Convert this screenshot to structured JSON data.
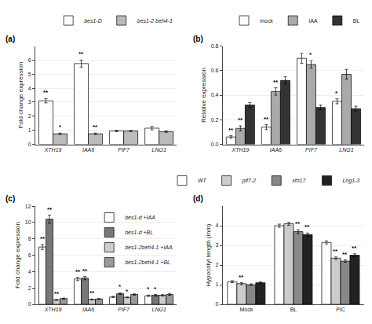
{
  "chart_data": [
    {
      "type": "bar",
      "title": "(a)",
      "categories": [
        "XTH19",
        "IAA6",
        "PIF7",
        "LNG1"
      ],
      "ylabel": "Fold change expression",
      "ylim": [
        0,
        7
      ],
      "yticks": [
        0,
        1,
        2,
        3,
        4,
        5,
        6
      ],
      "grid": true,
      "legend": "upper right",
      "series": [
        {
          "name": "bes1-D",
          "color": "#FFFFFF",
          "values": [
            3.1,
            5.75,
            0.95,
            1.15
          ],
          "errors": [
            0.15,
            0.25,
            0.05,
            0.12
          ],
          "annotations": [
            "**",
            "**",
            null,
            null
          ]
        },
        {
          "name": "bes1-2 beh4-1",
          "color": "#BBBBBB",
          "values": [
            0.75,
            0.75,
            0.95,
            0.9
          ],
          "errors": [
            0.05,
            0.05,
            0.04,
            0.05
          ],
          "annotations": [
            "*",
            "**",
            null,
            null
          ]
        }
      ]
    },
    {
      "type": "bar",
      "title": "(b)",
      "categories": [
        "XTH19",
        "IAA6",
        "PIF7",
        "LNG1"
      ],
      "ylabel": "Relative expression",
      "ylim": [
        0,
        0.8
      ],
      "yticks": [
        {
          "value": 0,
          "label": "0.0"
        },
        0.2,
        0.4,
        0.6,
        0.8
      ],
      "grid": true,
      "legend": "upper right",
      "series": [
        {
          "name": "mock",
          "color": "#FFFFFF",
          "values": [
            0.06,
            0.14,
            0.7,
            0.35
          ],
          "errors": [
            0.01,
            0.02,
            0.04,
            0.02
          ],
          "annotations": [
            "**",
            "**",
            null,
            "*"
          ]
        },
        {
          "name": "IAA",
          "color": "#AAAAAA",
          "values": [
            0.13,
            0.43,
            0.65,
            0.57
          ],
          "errors": [
            0.02,
            0.03,
            0.03,
            0.04
          ],
          "annotations": [
            "**",
            "**",
            "*",
            null
          ]
        },
        {
          "name": "BL",
          "color": "#333333",
          "values": [
            0.32,
            0.52,
            0.3,
            0.29
          ],
          "errors": [
            0.02,
            0.03,
            0.02,
            0.02
          ]
        }
      ]
    },
    {
      "type": "bar",
      "title": "(c)",
      "categories": [
        "XTH19",
        "IAA6",
        "PIF7",
        "LNG1"
      ],
      "ylabel": "Fold change expression",
      "ylim": [
        0,
        12
      ],
      "yticks": [
        0,
        2,
        4,
        6,
        8,
        10,
        12
      ],
      "grid": true,
      "legend": "upper right",
      "series": [
        {
          "name": "bes1-d +IAA",
          "color": "#FFFFFF",
          "values": [
            7.0,
            3.1,
            0.9,
            1.05
          ],
          "errors": [
            0.3,
            0.2,
            0.07,
            0.08
          ],
          "annotations": [
            "**",
            "**",
            null,
            "*"
          ]
        },
        {
          "name": "bes1-d +BL",
          "color": "#777777",
          "values": [
            10.4,
            3.2,
            1.3,
            1.1
          ],
          "errors": [
            0.5,
            0.2,
            0.1,
            0.1
          ],
          "annotations": [
            "**",
            "**",
            "*",
            "*"
          ]
        },
        {
          "name": "bes1-2beh4-1 +IAA",
          "color": "#CCCCCC",
          "values": [
            0.55,
            0.6,
            0.85,
            1.1
          ],
          "errors": [
            0.05,
            0.05,
            0.05,
            0.08
          ],
          "annotations": [
            "**",
            "**",
            "*",
            null
          ]
        },
        {
          "name": "bes1-2beh4-1 +BL",
          "color": "#999999",
          "values": [
            0.7,
            0.65,
            1.2,
            1.2
          ],
          "errors": [
            0.06,
            0.05,
            0.08,
            0.1
          ]
        }
      ]
    },
    {
      "type": "bar",
      "title": "(d)",
      "categories": [
        "Mock",
        "BL",
        "PIC"
      ],
      "ylabel": "Hypocotyl length (mm)",
      "ylim": [
        0,
        5
      ],
      "yticks": [
        0,
        1,
        2,
        3,
        4
      ],
      "grid": true,
      "legend": "upper right",
      "series": [
        {
          "name": "WT",
          "color": "#FFFFFF",
          "values": [
            1.15,
            4.0,
            3.15
          ],
          "errors": [
            0.05,
            0.08,
            0.08
          ]
        },
        {
          "name": "pif7-2",
          "color": "#CCCCCC",
          "values": [
            1.05,
            4.1,
            2.35
          ],
          "errors": [
            0.05,
            0.08,
            0.06
          ],
          "annotations": [
            "**",
            null,
            "**"
          ]
        },
        {
          "name": "xth17",
          "color": "#888888",
          "values": [
            1.0,
            3.7,
            2.2
          ],
          "errors": [
            0.04,
            0.1,
            0.06
          ],
          "annotations": [
            null,
            "**",
            "**"
          ]
        },
        {
          "name": "Lng1-3",
          "color": "#222222",
          "values": [
            1.1,
            3.55,
            2.5
          ],
          "errors": [
            0.05,
            0.08,
            0.07
          ],
          "annotations": [
            null,
            "**",
            "**"
          ]
        }
      ]
    }
  ]
}
